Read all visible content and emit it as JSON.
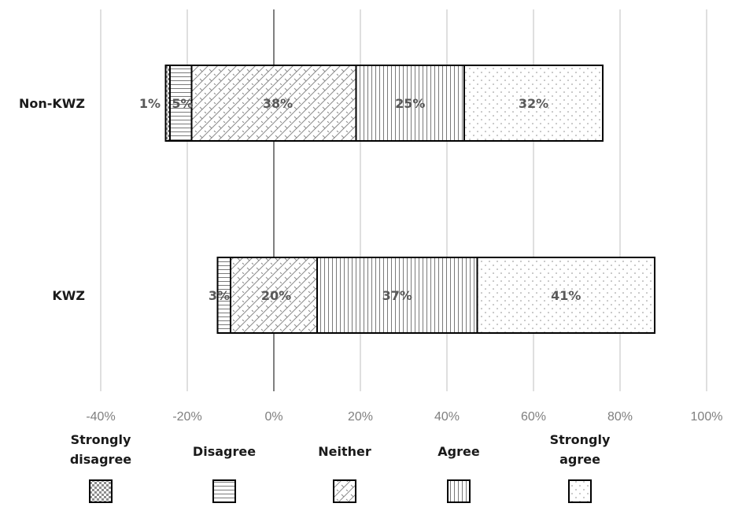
{
  "chart_data": {
    "type": "bar",
    "orientation": "horizontal",
    "stacked": "diverging",
    "categories": [
      "Non-KWZ",
      "KWZ"
    ],
    "series": [
      {
        "name": "Strongly disagree",
        "legend_lines": [
          "Strongly",
          "disagree"
        ],
        "pattern": "checker",
        "values": [
          1,
          0
        ],
        "labels": [
          "1%",
          ""
        ]
      },
      {
        "name": "Disagree",
        "legend_lines": [
          "Disagree"
        ],
        "pattern": "hlines",
        "values": [
          5,
          3
        ],
        "labels": [
          "5%",
          "3%"
        ]
      },
      {
        "name": "Neither",
        "legend_lines": [
          "Neither"
        ],
        "pattern": "diagonal",
        "values": [
          38,
          20
        ],
        "labels": [
          "38%",
          "20%"
        ]
      },
      {
        "name": "Agree",
        "legend_lines": [
          "Agree"
        ],
        "pattern": "vlines",
        "values": [
          25,
          37
        ],
        "labels": [
          "25%",
          "37%"
        ]
      },
      {
        "name": "Strongly agree",
        "legend_lines": [
          "Strongly",
          "agree"
        ],
        "pattern": "dots",
        "values": [
          32,
          41
        ],
        "labels": [
          "32%",
          "41%"
        ]
      }
    ],
    "xlim": [
      -40,
      100
    ],
    "xticks": [
      -40,
      -20,
      0,
      20,
      40,
      60,
      80,
      100
    ],
    "xtick_labels": [
      "-40%",
      "-20%",
      "0%",
      "20%",
      "40%",
      "60%",
      "80%",
      "100%"
    ],
    "grid": true,
    "legend_position": "bottom",
    "colors": {
      "stroke": "#000000",
      "grid": "#bfbfbf",
      "pattern": "#8c8c8c"
    }
  }
}
